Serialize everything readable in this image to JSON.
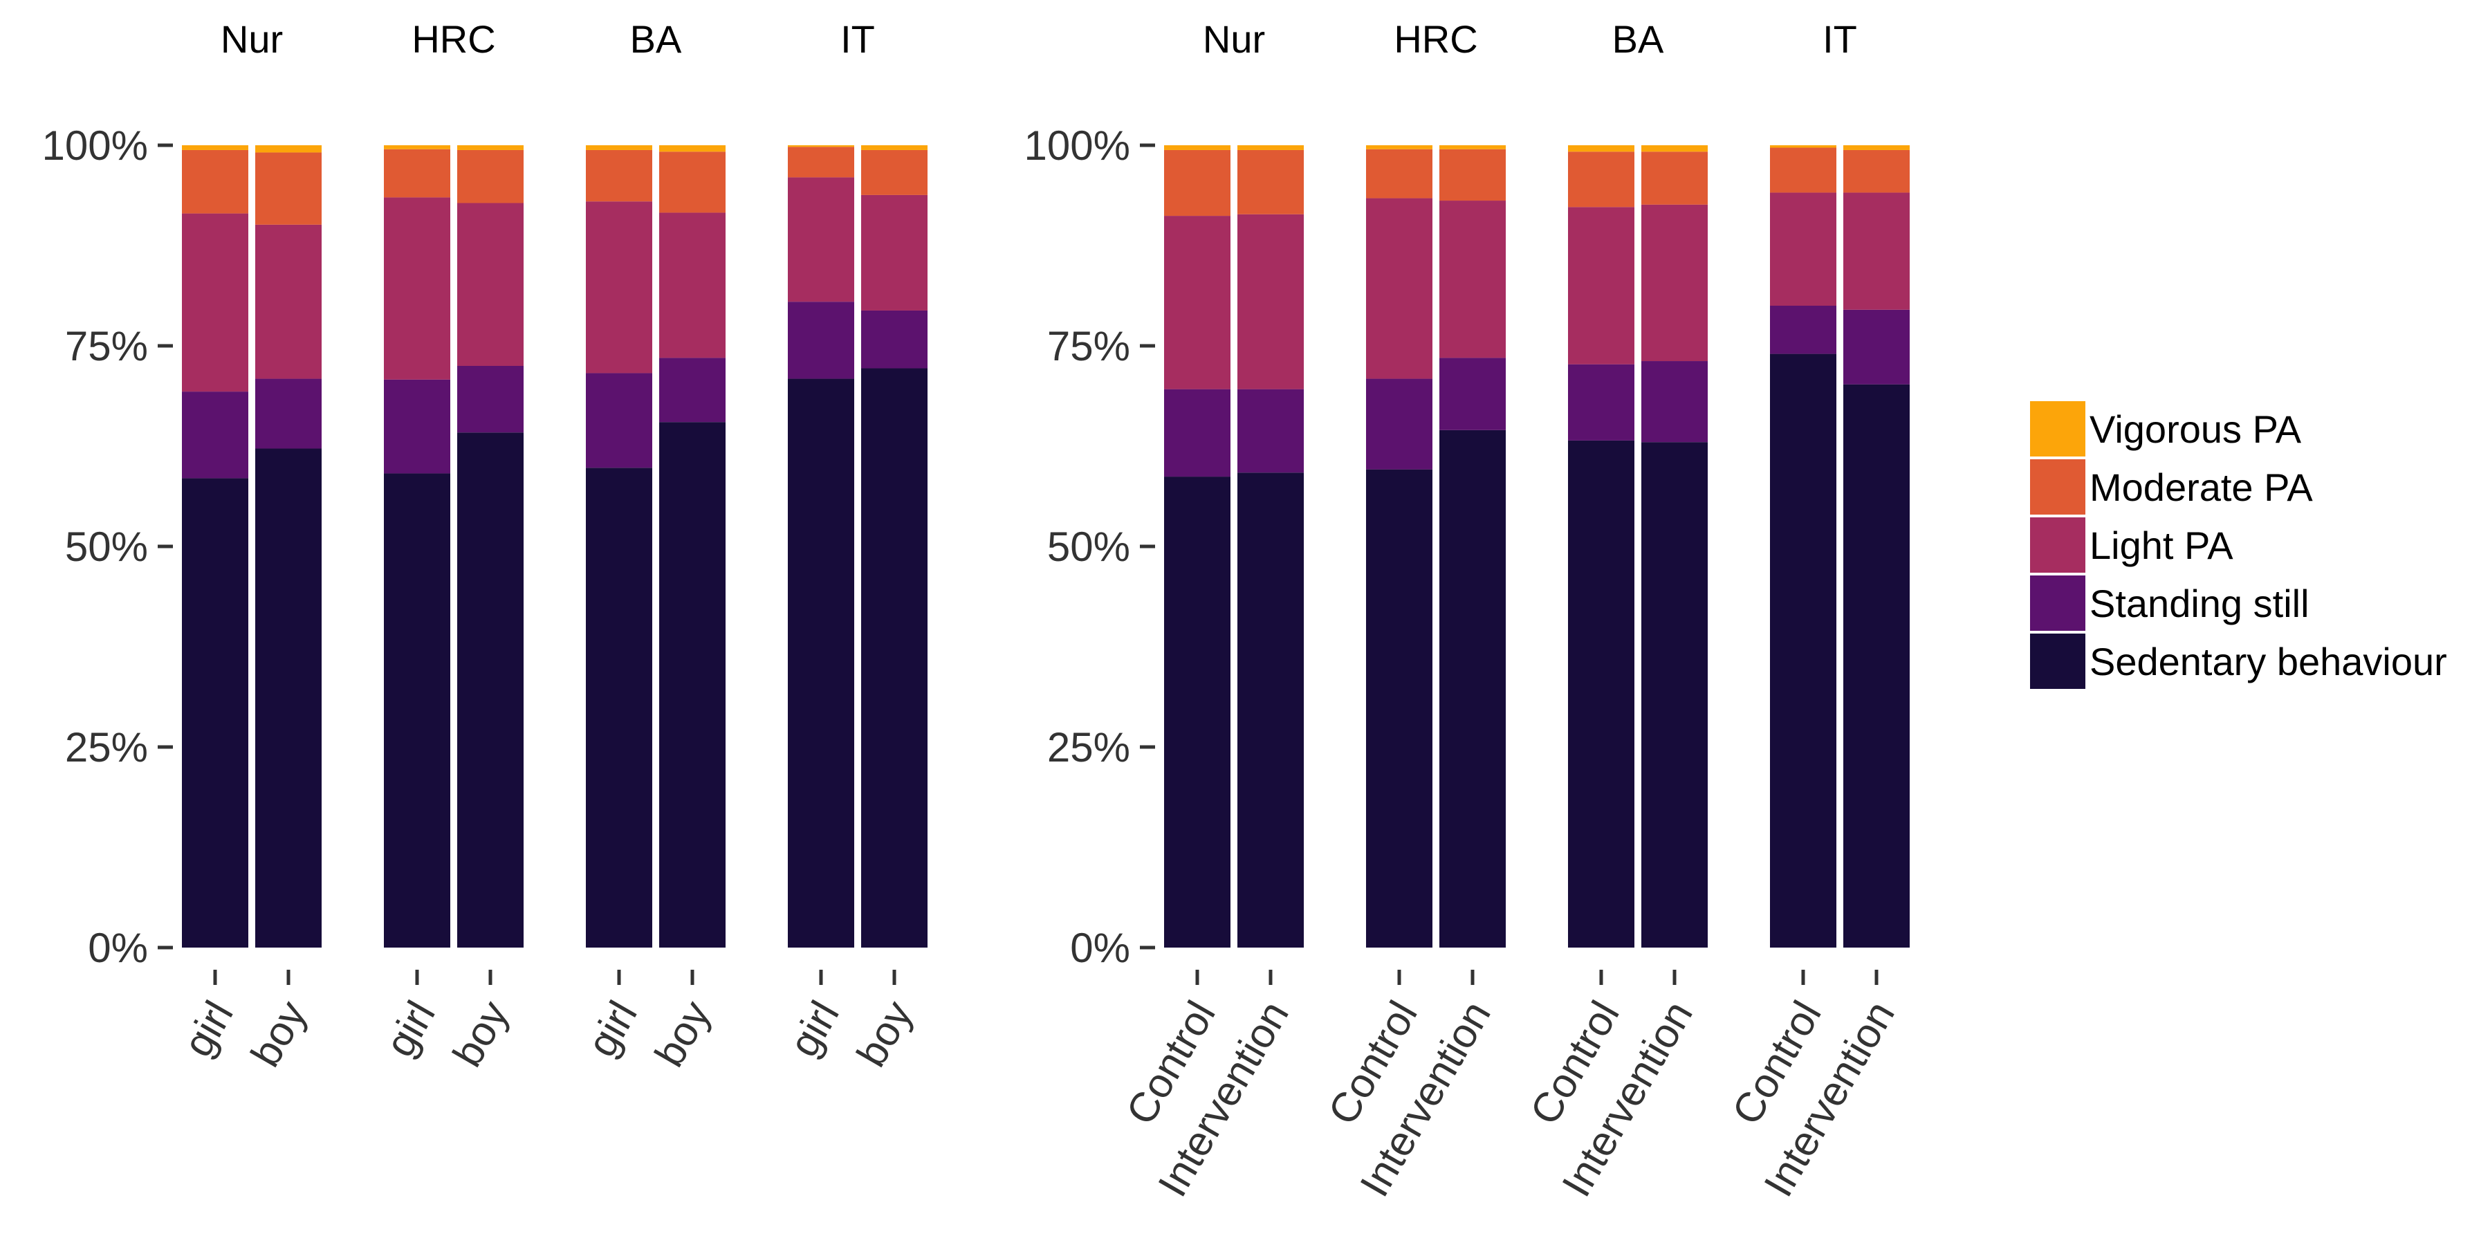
{
  "colors": {
    "Sedentary behaviour": "#170c3a",
    "Standing still": "#5c126e",
    "Light PA": "#a62d60",
    "Moderate PA": "#e05a33",
    "Vigorous PA": "#fca50a"
  },
  "legend": {
    "title": "",
    "placement": "right",
    "entries": [
      "Vigorous PA",
      "Moderate PA",
      "Light PA",
      "Standing still",
      "Sedentary behaviour"
    ]
  },
  "chart_data": [
    {
      "type": "bar",
      "stacked": true,
      "ylim": [
        0,
        1
      ],
      "yticks": [
        "0%",
        "25%",
        "50%",
        "75%",
        "100%"
      ],
      "facets": [
        {
          "title": "Nur",
          "categories": [
            "girl",
            "boy"
          ],
          "bars": [
            {
              "Sedentary behaviour": 0.585,
              "Standing still": 0.108,
              "Light PA": 0.222,
              "Moderate PA": 0.079,
              "Vigorous PA": 0.006
            },
            {
              "Sedentary behaviour": 0.622,
              "Standing still": 0.087,
              "Light PA": 0.192,
              "Moderate PA": 0.09,
              "Vigorous PA": 0.009
            }
          ]
        },
        {
          "title": "HRC",
          "categories": [
            "girl",
            "boy"
          ],
          "bars": [
            {
              "Sedentary behaviour": 0.591,
              "Standing still": 0.117,
              "Light PA": 0.227,
              "Moderate PA": 0.06,
              "Vigorous PA": 0.005
            },
            {
              "Sedentary behaviour": 0.642,
              "Standing still": 0.083,
              "Light PA": 0.203,
              "Moderate PA": 0.066,
              "Vigorous PA": 0.006
            }
          ]
        },
        {
          "title": "BA",
          "categories": [
            "girl",
            "boy"
          ],
          "bars": [
            {
              "Sedentary behaviour": 0.598,
              "Standing still": 0.118,
              "Light PA": 0.214,
              "Moderate PA": 0.064,
              "Vigorous PA": 0.006
            },
            {
              "Sedentary behaviour": 0.655,
              "Standing still": 0.08,
              "Light PA": 0.181,
              "Moderate PA": 0.076,
              "Vigorous PA": 0.008
            }
          ]
        },
        {
          "title": "IT",
          "categories": [
            "girl",
            "boy"
          ],
          "bars": [
            {
              "Sedentary behaviour": 0.709,
              "Standing still": 0.096,
              "Light PA": 0.155,
              "Moderate PA": 0.038,
              "Vigorous PA": 0.002
            },
            {
              "Sedentary behaviour": 0.722,
              "Standing still": 0.072,
              "Light PA": 0.144,
              "Moderate PA": 0.056,
              "Vigorous PA": 0.006
            }
          ]
        }
      ]
    },
    {
      "type": "bar",
      "stacked": true,
      "ylim": [
        0,
        1
      ],
      "yticks": [
        "0%",
        "25%",
        "50%",
        "75%",
        "100%"
      ],
      "facets": [
        {
          "title": "Nur",
          "categories": [
            "Control",
            "Intervention"
          ],
          "bars": [
            {
              "Sedentary behaviour": 0.587,
              "Standing still": 0.109,
              "Light PA": 0.216,
              "Moderate PA": 0.082,
              "Vigorous PA": 0.006
            },
            {
              "Sedentary behaviour": 0.592,
              "Standing still": 0.104,
              "Light PA": 0.218,
              "Moderate PA": 0.08,
              "Vigorous PA": 0.006
            }
          ]
        },
        {
          "title": "HRC",
          "categories": [
            "Control",
            "Intervention"
          ],
          "bars": [
            {
              "Sedentary behaviour": 0.596,
              "Standing still": 0.113,
              "Light PA": 0.225,
              "Moderate PA": 0.061,
              "Vigorous PA": 0.005
            },
            {
              "Sedentary behaviour": 0.645,
              "Standing still": 0.09,
              "Light PA": 0.196,
              "Moderate PA": 0.064,
              "Vigorous PA": 0.005
            }
          ]
        },
        {
          "title": "BA",
          "categories": [
            "Control",
            "Intervention"
          ],
          "bars": [
            {
              "Sedentary behaviour": 0.632,
              "Standing still": 0.095,
              "Light PA": 0.196,
              "Moderate PA": 0.069,
              "Vigorous PA": 0.008
            },
            {
              "Sedentary behaviour": 0.63,
              "Standing still": 0.101,
              "Light PA": 0.195,
              "Moderate PA": 0.066,
              "Vigorous PA": 0.008
            }
          ]
        },
        {
          "title": "IT",
          "categories": [
            "Control",
            "Intervention"
          ],
          "bars": [
            {
              "Sedentary behaviour": 0.74,
              "Standing still": 0.06,
              "Light PA": 0.141,
              "Moderate PA": 0.056,
              "Vigorous PA": 0.003
            },
            {
              "Sedentary behaviour": 0.702,
              "Standing still": 0.093,
              "Light PA": 0.146,
              "Moderate PA": 0.053,
              "Vigorous PA": 0.006
            }
          ]
        }
      ]
    }
  ]
}
